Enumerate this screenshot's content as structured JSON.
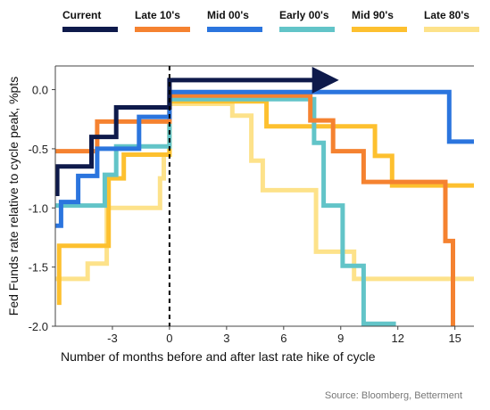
{
  "chart_data": {
    "type": "line",
    "title": "",
    "xlabel": "Number of months before and after last rate hike of cycle",
    "ylabel": "Fed Funds rate relative to cycle peak, %pts",
    "xlim": [
      -6,
      16
    ],
    "ylim": [
      -2.0,
      0.2
    ],
    "x_ticks": [
      -3,
      0,
      3,
      6,
      9,
      12,
      15
    ],
    "y_ticks": [
      0.0,
      -0.5,
      -1.0,
      -1.5,
      -2.0
    ],
    "x_tick_labels": [
      "-3",
      "0",
      "3",
      "6",
      "9",
      "12",
      "15"
    ],
    "y_tick_labels": [
      "0.0",
      "-0.5",
      "-1.0",
      "-1.5",
      "-2.0"
    ],
    "grid": false,
    "legend_position": "top",
    "source": "Source: Bloomberg, Betterment",
    "series": [
      {
        "name": "Late 80's",
        "color": "#fde28a",
        "points": [
          [
            -6,
            -1.6
          ],
          [
            -4.3,
            -1.6
          ],
          [
            -4.3,
            -1.47
          ],
          [
            -3.3,
            -1.47
          ],
          [
            -3.3,
            -1.0
          ],
          [
            -0.5,
            -1.0
          ],
          [
            -0.5,
            -0.75
          ],
          [
            -0.3,
            -0.75
          ],
          [
            -0.3,
            -0.55
          ],
          [
            0,
            -0.55
          ],
          [
            0,
            -0.12
          ],
          [
            3.3,
            -0.12
          ],
          [
            3.3,
            -0.22
          ],
          [
            4.3,
            -0.22
          ],
          [
            4.3,
            -0.6
          ],
          [
            4.9,
            -0.6
          ],
          [
            4.9,
            -0.85
          ],
          [
            7.7,
            -0.85
          ],
          [
            7.7,
            -1.37
          ],
          [
            9.7,
            -1.37
          ],
          [
            9.7,
            -1.6
          ],
          [
            16,
            -1.6
          ]
        ]
      },
      {
        "name": "Mid 90's",
        "color": "#fdc02f",
        "points": [
          [
            -5.8,
            -1.82
          ],
          [
            -5.8,
            -1.32
          ],
          [
            -3.2,
            -1.32
          ],
          [
            -3.2,
            -0.75
          ],
          [
            -2.4,
            -0.75
          ],
          [
            -2.4,
            -0.55
          ],
          [
            0,
            -0.55
          ],
          [
            0,
            -0.1
          ],
          [
            5.1,
            -0.1
          ],
          [
            5.1,
            -0.31
          ],
          [
            10.8,
            -0.31
          ],
          [
            10.8,
            -0.56
          ],
          [
            11.7,
            -0.56
          ],
          [
            11.7,
            -0.81
          ],
          [
            16,
            -0.81
          ]
        ]
      },
      {
        "name": "Early 00's",
        "color": "#62c4c8",
        "points": [
          [
            -6,
            -0.98
          ],
          [
            -3.4,
            -0.98
          ],
          [
            -3.4,
            -0.72
          ],
          [
            -2.8,
            -0.72
          ],
          [
            -2.8,
            -0.48
          ],
          [
            0,
            -0.48
          ],
          [
            0,
            -0.08
          ],
          [
            7.6,
            -0.08
          ],
          [
            7.6,
            -0.45
          ],
          [
            8.1,
            -0.45
          ],
          [
            8.1,
            -0.98
          ],
          [
            9.1,
            -0.98
          ],
          [
            9.1,
            -1.49
          ],
          [
            10.2,
            -1.49
          ],
          [
            10.2,
            -1.98
          ],
          [
            11.9,
            -1.98
          ]
        ]
      },
      {
        "name": "Late 10's",
        "color": "#f58230",
        "points": [
          [
            -6,
            -0.52
          ],
          [
            -3.8,
            -0.52
          ],
          [
            -3.8,
            -0.27
          ],
          [
            0,
            -0.27
          ],
          [
            0,
            -0.05
          ],
          [
            7.4,
            -0.05
          ],
          [
            7.4,
            -0.26
          ],
          [
            8.6,
            -0.26
          ],
          [
            8.6,
            -0.52
          ],
          [
            10.2,
            -0.52
          ],
          [
            10.2,
            -0.78
          ],
          [
            14.5,
            -0.78
          ],
          [
            14.5,
            -1.28
          ],
          [
            14.9,
            -1.28
          ],
          [
            14.9,
            -2.0
          ]
        ]
      },
      {
        "name": "Mid 00's",
        "color": "#2b75de",
        "points": [
          [
            -6,
            -1.15
          ],
          [
            -5.7,
            -1.15
          ],
          [
            -5.7,
            -0.95
          ],
          [
            -4.8,
            -0.95
          ],
          [
            -4.8,
            -0.73
          ],
          [
            -3.8,
            -0.73
          ],
          [
            -3.8,
            -0.5
          ],
          [
            -1.6,
            -0.5
          ],
          [
            -1.6,
            -0.23
          ],
          [
            0,
            -0.23
          ],
          [
            0,
            -0.02
          ],
          [
            14.7,
            -0.02
          ],
          [
            14.7,
            -0.44
          ],
          [
            16,
            -0.44
          ]
        ]
      },
      {
        "name": "Current",
        "color": "#0e1a4b",
        "arrow": true,
        "points": [
          [
            -5.9,
            -0.9
          ],
          [
            -5.9,
            -0.65
          ],
          [
            -4.1,
            -0.65
          ],
          [
            -4.1,
            -0.4
          ],
          [
            -2.8,
            -0.4
          ],
          [
            -2.8,
            -0.15
          ],
          [
            0,
            -0.15
          ],
          [
            0,
            0.08
          ],
          [
            8.2,
            0.08
          ]
        ]
      }
    ]
  },
  "legend": [
    {
      "name": "Current",
      "color": "#0e1a4b"
    },
    {
      "name": "Late 10's",
      "color": "#f58230"
    },
    {
      "name": "Mid 00's",
      "color": "#2b75de"
    },
    {
      "name": "Early 00's",
      "color": "#62c4c8"
    },
    {
      "name": "Mid 90's",
      "color": "#fdc02f"
    },
    {
      "name": "Late 80's",
      "color": "#fde28a"
    }
  ]
}
